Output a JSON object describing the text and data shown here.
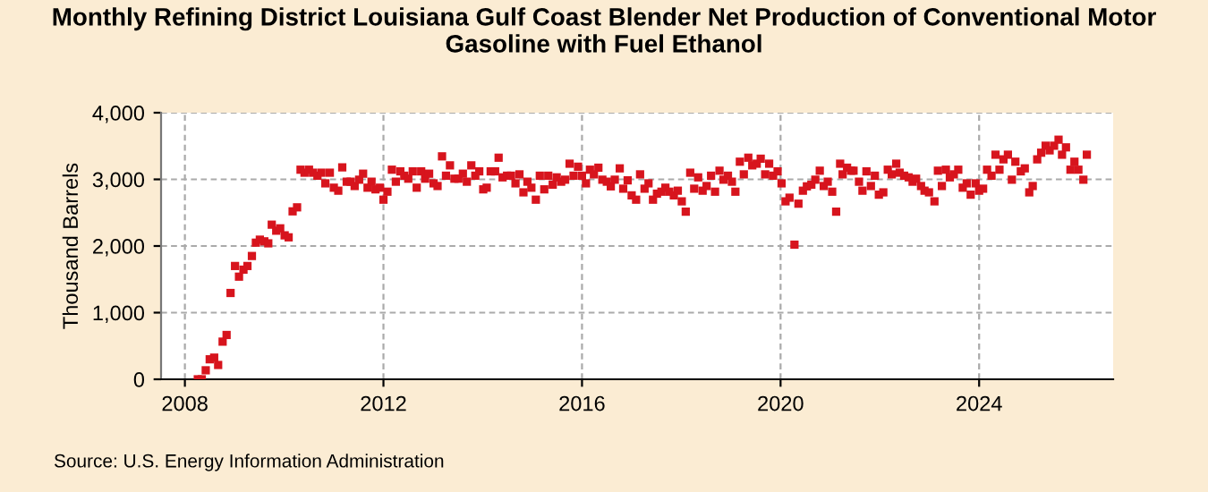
{
  "chart_data": {
    "type": "scatter",
    "title": "Monthly Refining District Louisiana Gulf Coast Blender Net Production of Conventional Motor Gasoline with Fuel Ethanol",
    "ylabel": "Thousand Barrels",
    "annotations": [
      "Source: U.S. Energy Information Administration"
    ],
    "x": [
      2008.26,
      2008.34,
      2008.42,
      2008.5,
      2008.59,
      2008.67,
      2008.76,
      2008.84,
      2008.92,
      2009.01,
      2009.09,
      2009.18,
      2009.26,
      2009.35,
      2009.43,
      2009.51,
      2009.6,
      2009.68,
      2009.75,
      2009.84,
      2009.92,
      2010.01,
      2010.09,
      2010.17,
      2010.26,
      2010.33,
      2010.41,
      2010.5,
      2010.58,
      2010.67,
      2010.75,
      2010.83,
      2010.92,
      2011.0,
      2011.09,
      2011.17,
      2011.26,
      2011.34,
      2011.42,
      2011.51,
      2011.59,
      2011.68,
      2011.76,
      2011.84,
      2011.93,
      2012.0,
      2012.08,
      2012.17,
      2012.25,
      2012.34,
      2012.42,
      2012.5,
      2012.59,
      2012.67,
      2012.76,
      2012.84,
      2012.92,
      2013.01,
      2013.09,
      2013.18,
      2013.26,
      2013.34,
      2013.43,
      2013.51,
      2013.6,
      2013.68,
      2013.77,
      2013.85,
      2013.93,
      2014.01,
      2014.08,
      2014.16,
      2014.25,
      2014.32,
      2014.4,
      2014.49,
      2014.57,
      2014.66,
      2014.74,
      2014.82,
      2014.9,
      2014.98,
      2015.07,
      2015.15,
      2015.24,
      2015.32,
      2015.41,
      2015.49,
      2015.58,
      2015.66,
      2015.75,
      2015.83,
      2015.92,
      2016.0,
      2016.08,
      2016.16,
      2016.24,
      2016.33,
      2016.41,
      2016.5,
      2016.58,
      2016.66,
      2016.76,
      2016.83,
      2016.92,
      2017.0,
      2017.09,
      2017.17,
      2017.26,
      2017.34,
      2017.43,
      2017.51,
      2017.6,
      2017.68,
      2017.76,
      2017.85,
      2017.93,
      2018.01,
      2018.09,
      2018.18,
      2018.26,
      2018.34,
      2018.43,
      2018.51,
      2018.6,
      2018.68,
      2018.77,
      2018.85,
      2018.94,
      2019.02,
      2019.09,
      2019.18,
      2019.26,
      2019.35,
      2019.43,
      2019.52,
      2019.6,
      2019.69,
      2019.77,
      2019.85,
      2019.94,
      2020.02,
      2020.1,
      2020.18,
      2020.28,
      2020.36,
      2020.45,
      2020.53,
      2020.62,
      2020.7,
      2020.79,
      2020.87,
      2020.95,
      2021.04,
      2021.12,
      2021.2,
      2021.25,
      2021.34,
      2021.42,
      2021.47,
      2021.58,
      2021.65,
      2021.73,
      2021.82,
      2021.9,
      2021.98,
      2022.07,
      2022.16,
      2022.24,
      2022.33,
      2022.4,
      2022.49,
      2022.58,
      2022.66,
      2022.73,
      2022.83,
      2022.9,
      2022.99,
      2023.1,
      2023.17,
      2023.25,
      2023.33,
      2023.41,
      2023.49,
      2023.58,
      2023.67,
      2023.75,
      2023.83,
      2023.93,
      2024.0,
      2024.08,
      2024.16,
      2024.25,
      2024.33,
      2024.41,
      2024.49,
      2024.58,
      2024.66,
      2024.73,
      2024.84,
      2024.92,
      2025.01,
      2025.08,
      2025.17,
      2025.25,
      2025.34,
      2025.42,
      2025.51,
      2025.6,
      2025.67,
      2025.75,
      2025.84,
      2025.92,
      2026.0,
      2026.1,
      2026.17
    ],
    "series": [
      {
        "color": "#d7141d",
        "values": [
          0,
          0,
          135,
          300,
          325,
          215,
          565,
          665,
          1295,
          1700,
          1540,
          1645,
          1700,
          1850,
          2050,
          2095,
          2070,
          2040,
          2320,
          2230,
          2265,
          2160,
          2130,
          2520,
          2580,
          3145,
          3100,
          3145,
          3100,
          3055,
          3100,
          2940,
          3100,
          2875,
          2830,
          3180,
          2965,
          2965,
          2900,
          2995,
          3085,
          2875,
          2965,
          2850,
          2875,
          2695,
          2815,
          3145,
          2965,
          3120,
          3055,
          3010,
          3120,
          2875,
          3120,
          3010,
          3085,
          2940,
          2900,
          3345,
          3055,
          3210,
          3010,
          3010,
          3085,
          2965,
          3210,
          3055,
          3120,
          2850,
          2875,
          3120,
          3120,
          3325,
          3030,
          3055,
          3055,
          2940,
          3075,
          2805,
          2965,
          2875,
          2695,
          3055,
          2850,
          3055,
          2920,
          3030,
          2965,
          2995,
          3235,
          3055,
          3190,
          3055,
          2940,
          3145,
          3075,
          3175,
          2995,
          2965,
          2895,
          2995,
          3165,
          2860,
          2985,
          2760,
          2695,
          3075,
          2860,
          2940,
          2695,
          2785,
          2815,
          2875,
          2815,
          2760,
          2830,
          2670,
          2515,
          3100,
          2860,
          3030,
          2830,
          2900,
          3055,
          2815,
          3130,
          2995,
          3055,
          2965,
          2815,
          3265,
          3075,
          3325,
          3210,
          3235,
          3310,
          3075,
          3235,
          3055,
          3120,
          2940,
          2670,
          2725,
          2020,
          2635,
          2830,
          2895,
          2920,
          2995,
          3130,
          2900,
          2965,
          2815,
          2515,
          3235,
          3075,
          3175,
          3130,
          3130,
          2965,
          2830,
          3120,
          2900,
          3055,
          2770,
          2805,
          3145,
          3075,
          3235,
          3100,
          3055,
          3030,
          2965,
          3010,
          2900,
          2830,
          2805,
          2670,
          3130,
          2900,
          3145,
          3030,
          3075,
          3145,
          2875,
          2940,
          2770,
          2940,
          2830,
          2860,
          3145,
          3055,
          3370,
          3145,
          3300,
          3370,
          2995,
          3265,
          3120,
          3165,
          2805,
          2900,
          3300,
          3400,
          3505,
          3435,
          3505,
          3595,
          3370,
          3480,
          3145,
          3265,
          3145,
          2995,
          3370
        ]
      }
    ],
    "marker": "square",
    "xlim": [
      2007.52,
      2026.7
    ],
    "xticks": [
      2008,
      2012,
      2016,
      2020,
      2024
    ],
    "ylim": [
      0,
      4000
    ],
    "yticks": [
      {
        "value": 0,
        "label": "0"
      },
      {
        "value": 1000,
        "label": "1,000"
      },
      {
        "value": 2000,
        "label": "2,000"
      },
      {
        "value": 3000,
        "label": "3,000"
      },
      {
        "value": 4000,
        "label": "4,000"
      }
    ],
    "grid": true
  }
}
